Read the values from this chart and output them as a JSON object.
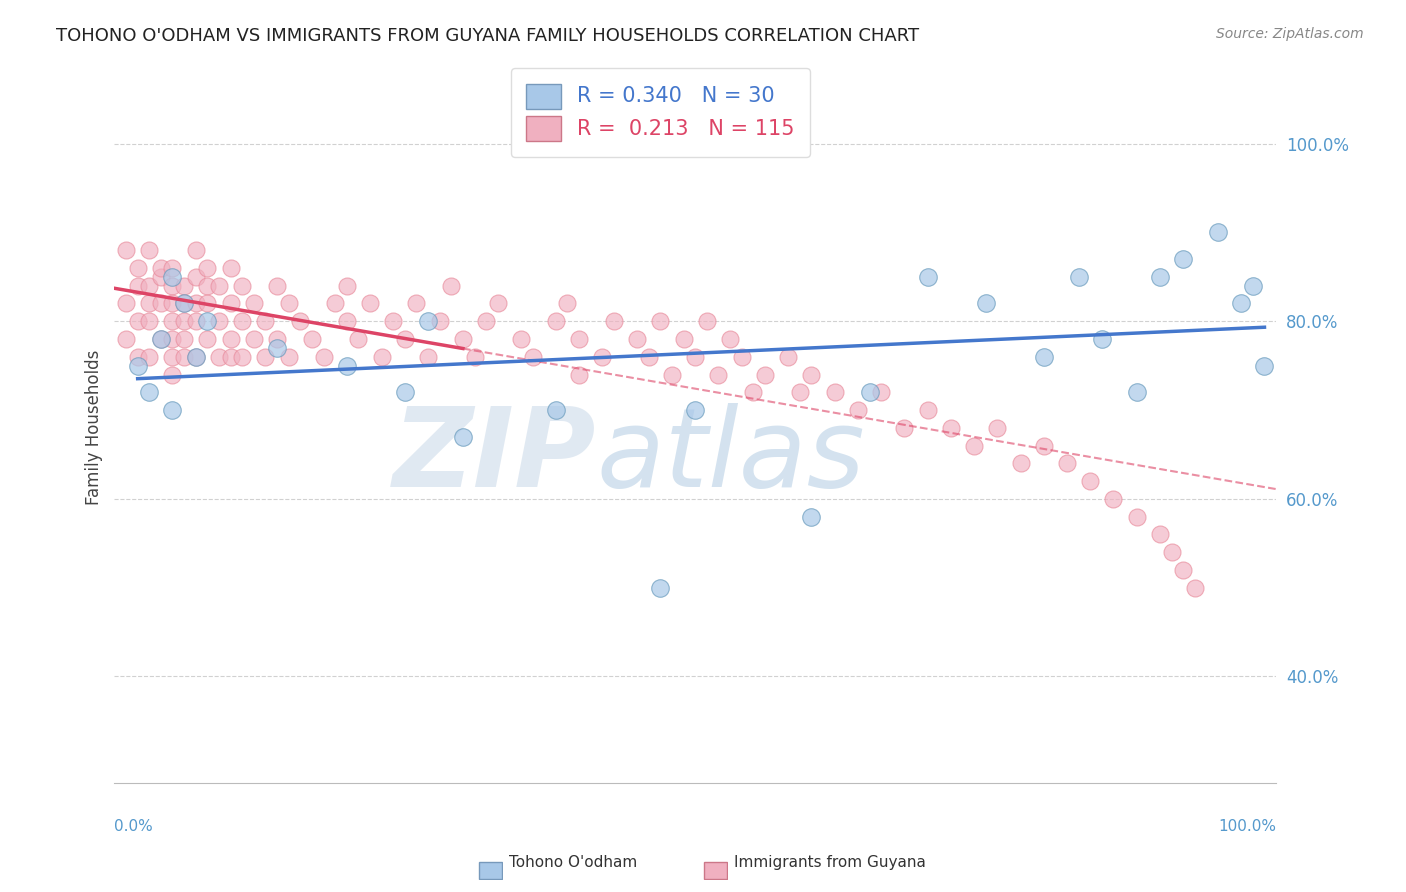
{
  "title": "TOHONO O'ODHAM VS IMMIGRANTS FROM GUYANA FAMILY HOUSEHOLDS CORRELATION CHART",
  "source": "Source: ZipAtlas.com",
  "ylabel": "Family Households",
  "xlim": [
    0,
    100
  ],
  "ylim": [
    28,
    108
  ],
  "yticks": [
    40,
    60,
    80,
    100
  ],
  "ytick_labels": [
    "40.0%",
    "60.0%",
    "80.0%",
    "100.0%"
  ],
  "grid_color": "#cccccc",
  "background_color": "#ffffff",
  "legend_r_blue": "0.340",
  "legend_n_blue": "30",
  "legend_r_pink": "0.213",
  "legend_n_pink": "115",
  "blue_color": "#a8c8e8",
  "pink_color": "#f0b0c0",
  "blue_line_color": "#4477cc",
  "pink_line_color": "#dd4466",
  "blue_scatter_x": [
    2,
    3,
    4,
    5,
    5,
    6,
    7,
    8,
    14,
    20,
    25,
    27,
    30,
    38,
    47,
    50,
    60,
    65,
    70,
    75,
    80,
    83,
    85,
    88,
    90,
    92,
    95,
    97,
    98,
    99
  ],
  "blue_scatter_y": [
    75,
    72,
    78,
    70,
    85,
    82,
    76,
    80,
    77,
    75,
    72,
    80,
    67,
    70,
    50,
    70,
    58,
    72,
    85,
    82,
    76,
    85,
    78,
    72,
    85,
    87,
    90,
    82,
    84,
    75
  ],
  "pink_scatter_x": [
    1,
    1,
    1,
    2,
    2,
    2,
    2,
    3,
    3,
    3,
    3,
    3,
    4,
    4,
    4,
    4,
    5,
    5,
    5,
    5,
    5,
    5,
    5,
    6,
    6,
    6,
    6,
    6,
    7,
    7,
    7,
    7,
    7,
    8,
    8,
    8,
    8,
    9,
    9,
    9,
    10,
    10,
    10,
    10,
    11,
    11,
    11,
    12,
    12,
    13,
    13,
    14,
    14,
    15,
    15,
    16,
    17,
    18,
    19,
    20,
    20,
    21,
    22,
    23,
    24,
    25,
    26,
    27,
    28,
    29,
    30,
    31,
    32,
    33,
    35,
    36,
    38,
    39,
    40,
    40,
    42,
    43,
    45,
    46,
    47,
    48,
    49,
    50,
    51,
    52,
    53,
    54,
    55,
    56,
    58,
    59,
    60,
    62,
    64,
    66,
    68,
    70,
    72,
    74,
    76,
    78,
    80,
    82,
    84,
    86,
    88,
    90,
    91,
    92,
    93
  ],
  "pink_scatter_y": [
    82,
    88,
    78,
    84,
    80,
    86,
    76,
    88,
    80,
    84,
    76,
    82,
    85,
    78,
    82,
    86,
    84,
    80,
    76,
    82,
    86,
    78,
    74,
    82,
    78,
    84,
    76,
    80,
    85,
    80,
    76,
    82,
    88,
    84,
    78,
    82,
    86,
    80,
    76,
    84,
    82,
    78,
    86,
    76,
    84,
    80,
    76,
    82,
    78,
    80,
    76,
    84,
    78,
    82,
    76,
    80,
    78,
    76,
    82,
    80,
    84,
    78,
    82,
    76,
    80,
    78,
    82,
    76,
    80,
    84,
    78,
    76,
    80,
    82,
    78,
    76,
    80,
    82,
    78,
    74,
    76,
    80,
    78,
    76,
    80,
    74,
    78,
    76,
    80,
    74,
    78,
    76,
    72,
    74,
    76,
    72,
    74,
    72,
    70,
    72,
    68,
    70,
    68,
    66,
    68,
    64,
    66,
    64,
    62,
    60,
    58,
    56,
    54,
    52,
    50
  ]
}
